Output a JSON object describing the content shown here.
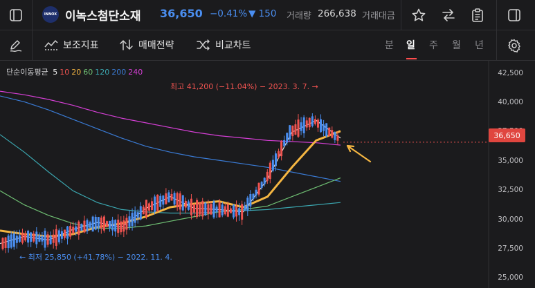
{
  "header": {
    "logo_text": "INNOX",
    "stock_name": "이녹스첨단소재",
    "price": "36,650",
    "change_pct": "−0.41%",
    "change_abs": "▼ 150",
    "volume_label": "거래량",
    "volume_value": "266,638",
    "amount_label": "거래대금"
  },
  "toolbar": {
    "indicator_label": "보조지표",
    "strategy_label": "매매전략",
    "compare_label": "비교차트",
    "periods": [
      "분",
      "일",
      "주",
      "월",
      "년"
    ],
    "active_period": "일"
  },
  "chart": {
    "ma_legend_title": "단순이동평균",
    "ma_periods": [
      {
        "label": "5",
        "color": "#e8e8e8"
      },
      {
        "label": "10",
        "color": "#ef5350"
      },
      {
        "label": "20",
        "color": "#f5b642"
      },
      {
        "label": "60",
        "color": "#6fbf73"
      },
      {
        "label": "120",
        "color": "#3ba7b0"
      },
      {
        "label": "200",
        "color": "#3a7bd5"
      },
      {
        "label": "240",
        "color": "#d63fd6"
      }
    ],
    "y_ticks": [
      "42,500",
      "40,000",
      "37,500",
      "35,000",
      "32,500",
      "30,000",
      "27,500",
      "25,000"
    ],
    "current_price_badge": "36,650",
    "high_label": "최고 41,200 (−11.04%) − 2023. 3. 7. →",
    "low_label": "← 최저 25,850 (+41.78%) − 2022. 11. 4.",
    "up_color": "#ef5350",
    "down_color": "#4a8ef0",
    "annotation_arrow_color": "#f5b642"
  },
  "chart_data": {
    "type": "line",
    "title": "",
    "ylim": [
      24200,
      43600
    ],
    "y_axis_ticks": [
      42500,
      40000,
      37500,
      35000,
      32500,
      30000,
      27500,
      25000
    ],
    "series": [
      {
        "name": "240",
        "values": [
          41000,
          40700,
          40300,
          39800,
          39200,
          38700,
          38300,
          37900,
          37500,
          37200,
          37000,
          36800,
          36700,
          36600,
          36400
        ]
      },
      {
        "name": "200",
        "values": [
          40600,
          40100,
          39400,
          38600,
          37800,
          37000,
          36300,
          35800,
          35400,
          35100,
          34800,
          34500,
          34100,
          33700,
          33300
        ]
      },
      {
        "name": "120",
        "values": [
          37300,
          35800,
          34100,
          32500,
          31500,
          30900,
          30700,
          30600,
          30600,
          30700,
          30800,
          30900,
          31100,
          31300,
          31500
        ]
      },
      {
        "name": "60",
        "values": [
          32500,
          31300,
          30400,
          29700,
          29300,
          29300,
          29500,
          29900,
          30300,
          30700,
          30900,
          31200,
          32000,
          32800,
          33600
        ]
      },
      {
        "name": "20",
        "values": [
          29100,
          28800,
          28600,
          28800,
          29400,
          29700,
          30300,
          31100,
          31400,
          31600,
          31100,
          32000,
          34500,
          36800,
          37600
        ]
      },
      {
        "name": "5",
        "values": [
          28000,
          28600,
          28300,
          29200,
          29800,
          29400,
          31000,
          32000,
          31000,
          30900,
          30700,
          33500,
          37500,
          38500,
          37000
        ]
      }
    ],
    "x": [
      0,
      1,
      2,
      3,
      4,
      5,
      6,
      7,
      8,
      9,
      10,
      11,
      12,
      13,
      14
    ],
    "annotations": [
      {
        "text": "최고 41,200 (−11.04%) − 2023. 3. 7.",
        "value": 41200
      },
      {
        "text": "최저 25,850 (+41.78%) − 2022. 11. 4.",
        "value": 25850
      },
      {
        "text": "36,650",
        "value": 36650
      }
    ]
  }
}
